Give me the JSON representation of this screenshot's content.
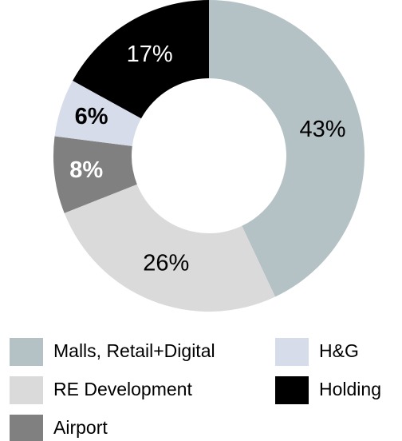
{
  "chart_data": {
    "type": "donut",
    "categories": [
      "Malls, Retail+Digital",
      "RE Development",
      "Airport",
      "H&G",
      "Holding"
    ],
    "values": [
      43,
      26,
      8,
      6,
      17
    ],
    "value_labels": [
      "43%",
      "26%",
      "8%",
      "6%",
      "17%"
    ],
    "colors": [
      "#b4c2c6",
      "#dadada",
      "#808080",
      "#d7dceb",
      "#000000"
    ],
    "legend": "bottom"
  }
}
